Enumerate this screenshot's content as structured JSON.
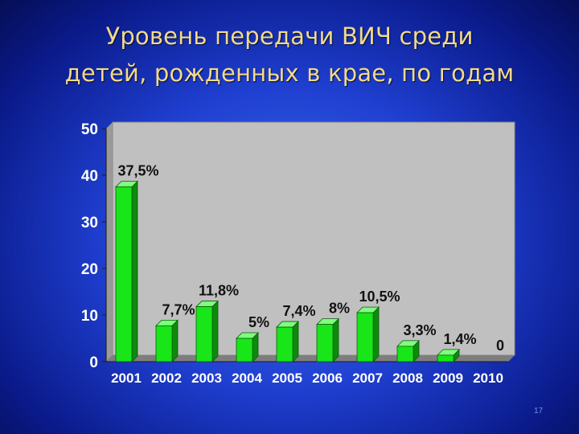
{
  "slide": {
    "title_lines": [
      "Уровень передачи ВИЧ среди",
      "детей, рожденных в крае, по годам"
    ],
    "page_number": "17"
  },
  "colors": {
    "bar_fill": "#19e619",
    "bar_side": "#0c8a0c",
    "bar_top": "#7dff7d",
    "plot_background": "#c0c0c0",
    "text": "#ffffff",
    "title": "#f3d98a"
  },
  "chart_data": {
    "type": "bar",
    "title": "",
    "xlabel": "",
    "ylabel": "",
    "ylim": [
      0,
      50
    ],
    "yticks": [
      0,
      10,
      20,
      30,
      40,
      50
    ],
    "grid": false,
    "legend": "none",
    "categories": [
      "2001",
      "2002",
      "2003",
      "2004",
      "2005",
      "2006",
      "2007",
      "2008",
      "2009",
      "2010"
    ],
    "values": [
      37.5,
      7.7,
      11.8,
      5,
      7.4,
      8,
      10.5,
      3.3,
      1.4,
      0
    ],
    "data_labels": [
      "37,5%",
      "7,7%",
      "11,8%",
      "5%",
      "7,4%",
      "8%",
      "10,5%",
      "3,3%",
      "1,4%",
      "0"
    ]
  }
}
